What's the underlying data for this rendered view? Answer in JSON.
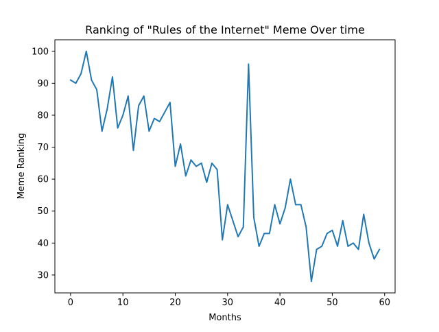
{
  "chart_data": {
    "type": "line",
    "title": "Ranking of \"Rules of the Internet\" Meme Over time",
    "xlabel": "Months",
    "ylabel": "Meme Ranking",
    "xlim": [
      -3,
      62
    ],
    "ylim": [
      24.4,
      103.6
    ],
    "xticks": [
      0,
      10,
      20,
      30,
      40,
      50,
      60
    ],
    "yticks": [
      30,
      40,
      50,
      60,
      70,
      80,
      90,
      100
    ],
    "grid": false,
    "legend": "none",
    "series": [
      {
        "color": "#1f77b4",
        "x": [
          0,
          1,
          2,
          3,
          4,
          5,
          6,
          7,
          8,
          9,
          10,
          11,
          12,
          13,
          14,
          15,
          16,
          17,
          18,
          19,
          20,
          21,
          22,
          23,
          24,
          25,
          26,
          27,
          28,
          29,
          30,
          31,
          32,
          33,
          34,
          35,
          36,
          37,
          38,
          39,
          40,
          41,
          42,
          43,
          44,
          45,
          46,
          47,
          48,
          49,
          50,
          51,
          52,
          53,
          54,
          55,
          56,
          57,
          58,
          59
        ],
        "values": [
          91,
          90,
          93,
          100,
          91,
          88,
          75,
          82,
          92,
          76,
          80,
          86,
          69,
          83,
          86,
          75,
          79,
          78,
          81,
          84,
          64,
          71,
          61,
          66,
          64,
          65,
          59,
          65,
          63,
          41,
          52,
          47,
          42,
          45,
          96,
          48,
          39,
          43,
          43,
          52,
          46,
          51,
          60,
          52,
          52,
          45,
          28,
          38,
          39,
          43,
          44,
          39,
          47,
          39,
          40,
          38,
          49,
          40,
          35,
          38
        ]
      }
    ]
  }
}
